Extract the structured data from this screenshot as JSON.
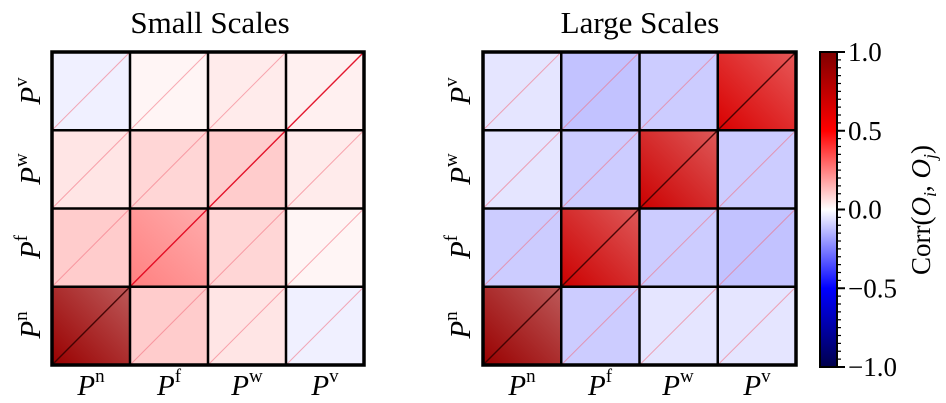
{
  "colors": {
    "negative": "#0000ff",
    "zero": "#ffffff",
    "positive": "#ff0000",
    "extreme_negative": "#00004c",
    "extreme_positive": "#7f0000",
    "frame": "#000000"
  },
  "chart_data": [
    {
      "type": "heatmap",
      "title": "Small Scales",
      "x_categories": [
        "P^n",
        "P^f",
        "P^w",
        "P^v"
      ],
      "y_categories": [
        "P^n",
        "P^f",
        "P^w",
        "P^v"
      ],
      "block_correlation": [
        [
          0.9,
          0.1,
          0.05,
          -0.03
        ],
        [
          0.1,
          0.25,
          0.08,
          0.02
        ],
        [
          0.05,
          0.08,
          0.1,
          0.04
        ],
        [
          -0.03,
          0.02,
          0.04,
          0.03
        ]
      ],
      "diagonal_line": true,
      "colormap": "seismic",
      "vmin": -1.0,
      "vmax": 1.0
    },
    {
      "type": "heatmap",
      "title": "Large Scales",
      "x_categories": [
        "P^n",
        "P^f",
        "P^w",
        "P^v"
      ],
      "y_categories": [
        "P^n",
        "P^f",
        "P^w",
        "P^v"
      ],
      "block_correlation": [
        [
          0.9,
          -0.1,
          -0.05,
          -0.05
        ],
        [
          -0.1,
          0.7,
          -0.1,
          -0.12
        ],
        [
          -0.05,
          -0.1,
          0.7,
          -0.1
        ],
        [
          -0.05,
          -0.12,
          -0.1,
          0.65
        ]
      ],
      "diagonal_line": true,
      "colormap": "seismic",
      "vmin": -1.0,
      "vmax": 1.0
    }
  ],
  "colorbar": {
    "label": "Corr(O_i, O_j)",
    "ticks": [
      "1.0",
      "0.5",
      "0.0",
      "−0.5",
      "−1.0"
    ],
    "tick_values": [
      1.0,
      0.5,
      0.0,
      -0.5,
      -1.0
    ],
    "vmin": -1.0,
    "vmax": 1.0
  }
}
